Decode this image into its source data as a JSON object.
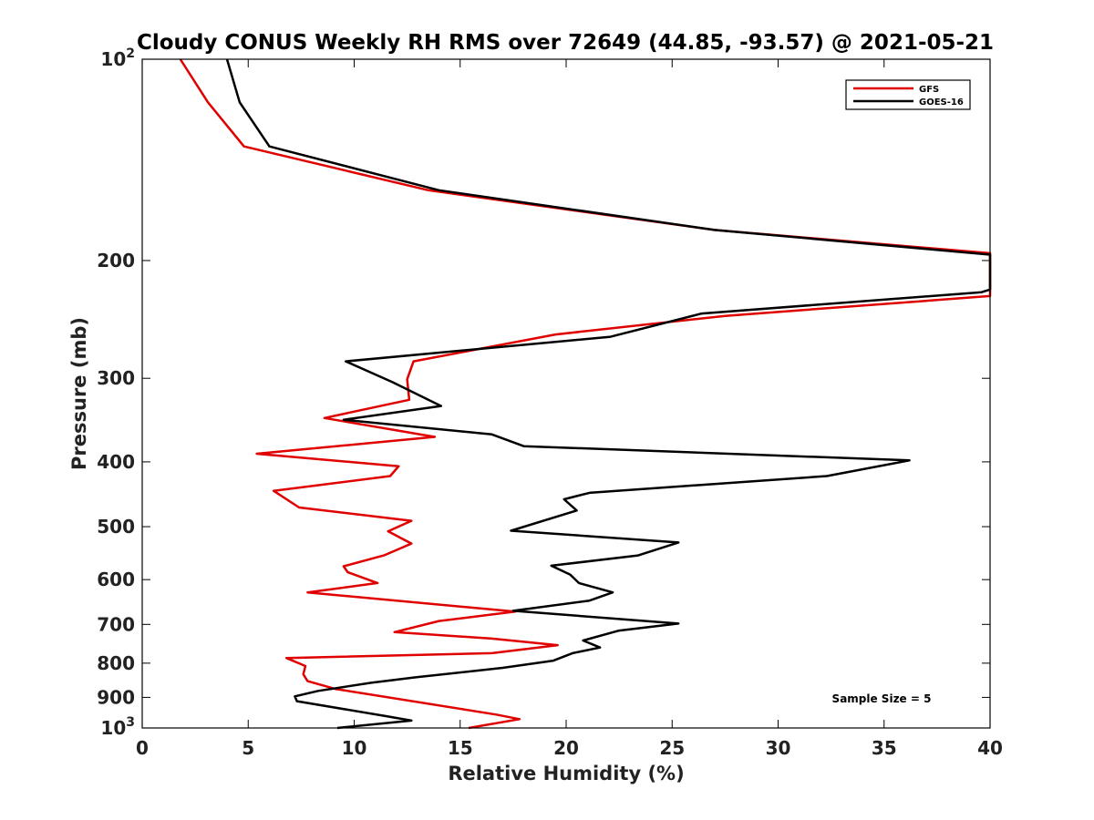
{
  "chart_data": {
    "type": "line",
    "title": "Cloudy CONUS Weekly RH RMS over 72649 (44.85, -93.57) @ 2021-05-21",
    "xlabel": "Relative Humidity (%)",
    "ylabel": "Pressure (mb)",
    "xlim": [
      0,
      40
    ],
    "ylim": [
      100,
      1000
    ],
    "y_scale": "log",
    "y_reversed": true,
    "x_ticks": [
      0,
      5,
      10,
      15,
      20,
      25,
      30,
      35,
      40
    ],
    "x_tick_labels": [
      "0",
      "5",
      "10",
      "15",
      "20",
      "25",
      "30",
      "35",
      "40"
    ],
    "y_ticks": [
      100,
      200,
      300,
      400,
      500,
      600,
      700,
      800,
      900,
      1000
    ],
    "y_tick_labels": [
      "10^2",
      "200",
      "300",
      "400",
      "500",
      "600",
      "700",
      "800",
      "900",
      "10^3"
    ],
    "grid": false,
    "legend_position": "top-right",
    "annotation": "Sample Size = 5",
    "series": [
      {
        "name": "GFS",
        "color": "#e00000",
        "points": [
          [
            1.8,
            100
          ],
          [
            3.1,
            116
          ],
          [
            4.8,
            135
          ],
          [
            13.5,
            157
          ],
          [
            27,
            180
          ],
          [
            40,
            195
          ],
          [
            40,
            226
          ],
          [
            27.5,
            242
          ],
          [
            19.5,
            258
          ],
          [
            12.8,
            283
          ],
          [
            12.5,
            301
          ],
          [
            12.6,
            323
          ],
          [
            8.6,
            344
          ],
          [
            13.8,
            367
          ],
          [
            5.4,
            389
          ],
          [
            12.1,
            406
          ],
          [
            11.7,
            420
          ],
          [
            6.2,
            442
          ],
          [
            7.4,
            468
          ],
          [
            12.7,
            490
          ],
          [
            11.6,
            508
          ],
          [
            12.7,
            530
          ],
          [
            11.4,
            552
          ],
          [
            9.5,
            573
          ],
          [
            9.7,
            585
          ],
          [
            11.1,
            607
          ],
          [
            7.8,
            627
          ],
          [
            17.6,
            670
          ],
          [
            14,
            692
          ],
          [
            11.9,
            719
          ],
          [
            16.5,
            735
          ],
          [
            19.6,
            752
          ],
          [
            16.5,
            773
          ],
          [
            6.8,
            786
          ],
          [
            7.7,
            808
          ],
          [
            7.6,
            831
          ],
          [
            7.8,
            851
          ],
          [
            9.1,
            874
          ],
          [
            16.7,
            955
          ],
          [
            17.8,
            970
          ],
          [
            15.4,
            1000
          ]
        ]
      },
      {
        "name": "GOES-16",
        "color": "#000000",
        "points": [
          [
            4,
            100
          ],
          [
            4.6,
            116
          ],
          [
            6,
            135
          ],
          [
            14,
            157
          ],
          [
            27,
            180
          ],
          [
            40,
            196
          ],
          [
            40,
            221
          ],
          [
            39.6,
            223
          ],
          [
            26.4,
            240
          ],
          [
            22.1,
            260
          ],
          [
            9.6,
            283
          ],
          [
            11.8,
            304
          ],
          [
            14.1,
            330
          ],
          [
            9.5,
            346
          ],
          [
            16.5,
            364
          ],
          [
            18,
            379
          ],
          [
            36.2,
            398
          ],
          [
            32.3,
            420
          ],
          [
            21.1,
            445
          ],
          [
            19.9,
            455
          ],
          [
            20.5,
            473
          ],
          [
            17.4,
            507
          ],
          [
            25.3,
            528
          ],
          [
            23.4,
            552
          ],
          [
            19.3,
            572
          ],
          [
            20.2,
            590
          ],
          [
            20.6,
            607
          ],
          [
            22.2,
            627
          ],
          [
            21.1,
            645
          ],
          [
            17.5,
            668
          ],
          [
            25.3,
            698
          ],
          [
            22.5,
            715
          ],
          [
            20.8,
            740
          ],
          [
            21.6,
            758
          ],
          [
            20.3,
            773
          ],
          [
            19.4,
            793
          ],
          [
            17,
            813
          ],
          [
            12.9,
            840
          ],
          [
            10.8,
            856
          ],
          [
            8.3,
            880
          ],
          [
            7.2,
            897
          ],
          [
            7.3,
            912
          ],
          [
            11.5,
            960
          ],
          [
            12.7,
            975
          ],
          [
            9.2,
            1000
          ]
        ]
      }
    ]
  }
}
